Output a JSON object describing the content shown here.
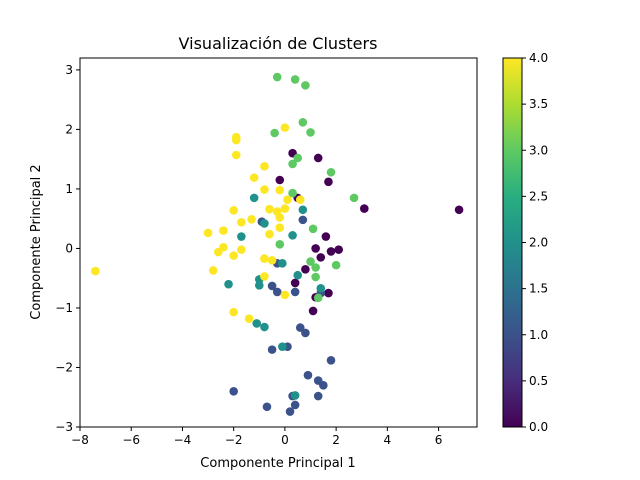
{
  "chart_data": {
    "type": "scatter",
    "title": "Visualización de Clusters",
    "xlabel": "Componente Principal 1",
    "ylabel": "Componente Principal 2",
    "xlim": [
      -8.0,
      7.5
    ],
    "ylim": [
      -3.0,
      3.2
    ],
    "xticks": [
      -8,
      -6,
      -4,
      -2,
      0,
      2,
      4,
      6
    ],
    "xtick_labels": [
      "−8",
      "−6",
      "−4",
      "−2",
      "0",
      "2",
      "4",
      "6"
    ],
    "yticks": [
      -3,
      -2,
      -1,
      0,
      1,
      2,
      3
    ],
    "ytick_labels": [
      "−3",
      "−2",
      "−1",
      "0",
      "1",
      "2",
      "3"
    ],
    "grid": false,
    "colormap": "viridis",
    "colorbar": {
      "range": [
        0.0,
        4.0
      ],
      "ticks": [
        0.0,
        0.5,
        1.0,
        1.5,
        2.0,
        2.5,
        3.0,
        3.5,
        4.0
      ],
      "tick_labels": [
        "0.0",
        "0.5",
        "1.0",
        "1.5",
        "2.0",
        "2.5",
        "3.0",
        "3.5",
        "4.0"
      ]
    },
    "points": [
      {
        "x": 6.8,
        "y": 0.65,
        "c": 0
      },
      {
        "x": 3.1,
        "y": 0.67,
        "c": 0
      },
      {
        "x": 1.3,
        "y": 1.52,
        "c": 0
      },
      {
        "x": 1.7,
        "y": 1.12,
        "c": 0
      },
      {
        "x": 0.3,
        "y": 1.6,
        "c": 0
      },
      {
        "x": -0.2,
        "y": 1.15,
        "c": 0
      },
      {
        "x": 0.5,
        "y": 0.85,
        "c": 0
      },
      {
        "x": 1.6,
        "y": 0.2,
        "c": 0
      },
      {
        "x": 1.2,
        "y": 0.0,
        "c": 0
      },
      {
        "x": 1.4,
        "y": -0.15,
        "c": 0
      },
      {
        "x": 1.8,
        "y": -0.05,
        "c": 0
      },
      {
        "x": 2.1,
        "y": -0.02,
        "c": 0
      },
      {
        "x": 0.8,
        "y": -0.35,
        "c": 0
      },
      {
        "x": 0.4,
        "y": -0.58,
        "c": 0
      },
      {
        "x": 1.7,
        "y": -0.75,
        "c": 0
      },
      {
        "x": 1.1,
        "y": -1.05,
        "c": 0
      },
      {
        "x": 1.2,
        "y": -0.82,
        "c": 0
      },
      {
        "x": -0.9,
        "y": 0.45,
        "c": 1
      },
      {
        "x": 0.7,
        "y": 0.48,
        "c": 1
      },
      {
        "x": -0.3,
        "y": -0.25,
        "c": 1
      },
      {
        "x": -0.5,
        "y": -0.63,
        "c": 1
      },
      {
        "x": -0.3,
        "y": -0.73,
        "c": 1
      },
      {
        "x": 0.4,
        "y": -0.73,
        "c": 1
      },
      {
        "x": 1.4,
        "y": -0.75,
        "c": 1
      },
      {
        "x": 0.6,
        "y": -1.33,
        "c": 1
      },
      {
        "x": 0.8,
        "y": -1.42,
        "c": 1
      },
      {
        "x": 0.1,
        "y": -1.65,
        "c": 1
      },
      {
        "x": -0.5,
        "y": -1.7,
        "c": 1
      },
      {
        "x": 1.8,
        "y": -1.88,
        "c": 1
      },
      {
        "x": 0.9,
        "y": -2.13,
        "c": 1
      },
      {
        "x": 1.3,
        "y": -2.22,
        "c": 1
      },
      {
        "x": 1.5,
        "y": -2.3,
        "c": 1
      },
      {
        "x": -2.0,
        "y": -2.4,
        "c": 1
      },
      {
        "x": 1.3,
        "y": -2.48,
        "c": 1
      },
      {
        "x": 0.3,
        "y": -2.48,
        "c": 1
      },
      {
        "x": 0.4,
        "y": -2.63,
        "c": 1
      },
      {
        "x": -0.7,
        "y": -2.66,
        "c": 1
      },
      {
        "x": 0.2,
        "y": -2.74,
        "c": 1
      },
      {
        "x": -1.2,
        "y": 0.85,
        "c": 2
      },
      {
        "x": 0.7,
        "y": 0.65,
        "c": 2
      },
      {
        "x": -0.8,
        "y": 0.42,
        "c": 2
      },
      {
        "x": 0.3,
        "y": 0.22,
        "c": 2
      },
      {
        "x": -1.7,
        "y": 0.2,
        "c": 2
      },
      {
        "x": -0.1,
        "y": -0.25,
        "c": 2
      },
      {
        "x": 0.5,
        "y": -0.45,
        "c": 2
      },
      {
        "x": -2.2,
        "y": -0.6,
        "c": 2
      },
      {
        "x": -1.0,
        "y": -0.52,
        "c": 2
      },
      {
        "x": -1.0,
        "y": -0.62,
        "c": 2
      },
      {
        "x": 1.4,
        "y": -0.67,
        "c": 2
      },
      {
        "x": -1.1,
        "y": -1.26,
        "c": 2
      },
      {
        "x": -0.8,
        "y": -1.32,
        "c": 2
      },
      {
        "x": -0.1,
        "y": -1.65,
        "c": 2
      },
      {
        "x": 0.4,
        "y": -2.47,
        "c": 2
      },
      {
        "x": -0.3,
        "y": 2.88,
        "c": 3
      },
      {
        "x": 0.4,
        "y": 2.84,
        "c": 3
      },
      {
        "x": 0.8,
        "y": 2.74,
        "c": 3
      },
      {
        "x": 0.7,
        "y": 2.12,
        "c": 3
      },
      {
        "x": 1.0,
        "y": 1.95,
        "c": 3
      },
      {
        "x": -0.4,
        "y": 1.94,
        "c": 3
      },
      {
        "x": 0.5,
        "y": 1.52,
        "c": 3
      },
      {
        "x": 0.3,
        "y": 1.42,
        "c": 3
      },
      {
        "x": 1.8,
        "y": 1.28,
        "c": 3
      },
      {
        "x": 0.3,
        "y": 0.93,
        "c": 3
      },
      {
        "x": 2.7,
        "y": 0.85,
        "c": 3
      },
      {
        "x": 1.1,
        "y": 0.33,
        "c": 3
      },
      {
        "x": -0.2,
        "y": 0.07,
        "c": 3
      },
      {
        "x": 1.0,
        "y": -0.22,
        "c": 3
      },
      {
        "x": 1.2,
        "y": -0.32,
        "c": 3
      },
      {
        "x": 2.0,
        "y": -0.28,
        "c": 3
      },
      {
        "x": 1.2,
        "y": -0.48,
        "c": 3
      },
      {
        "x": 1.3,
        "y": -0.83,
        "c": 3
      },
      {
        "x": -1.9,
        "y": 1.87,
        "c": 4
      },
      {
        "x": -1.9,
        "y": 1.82,
        "c": 4
      },
      {
        "x": -1.9,
        "y": 1.57,
        "c": 4
      },
      {
        "x": 0.0,
        "y": 2.03,
        "c": 4
      },
      {
        "x": -0.8,
        "y": 1.38,
        "c": 4
      },
      {
        "x": -1.2,
        "y": 1.19,
        "c": 4
      },
      {
        "x": -0.8,
        "y": 0.99,
        "c": 4
      },
      {
        "x": -0.2,
        "y": 0.98,
        "c": 4
      },
      {
        "x": 0.1,
        "y": 0.82,
        "c": 4
      },
      {
        "x": 0.6,
        "y": 0.82,
        "c": 4
      },
      {
        "x": -2.0,
        "y": 0.64,
        "c": 4
      },
      {
        "x": -0.6,
        "y": 0.66,
        "c": 4
      },
      {
        "x": -0.3,
        "y": 0.62,
        "c": 4
      },
      {
        "x": 0.0,
        "y": 0.67,
        "c": 4
      },
      {
        "x": -0.2,
        "y": 0.52,
        "c": 4
      },
      {
        "x": -1.3,
        "y": 0.49,
        "c": 4
      },
      {
        "x": -1.7,
        "y": 0.44,
        "c": 4
      },
      {
        "x": -0.2,
        "y": 0.35,
        "c": 4
      },
      {
        "x": -2.4,
        "y": 0.3,
        "c": 4
      },
      {
        "x": -3.0,
        "y": 0.26,
        "c": 4
      },
      {
        "x": -0.6,
        "y": 0.24,
        "c": 4
      },
      {
        "x": -1.7,
        "y": -0.02,
        "c": 4
      },
      {
        "x": -2.4,
        "y": 0.02,
        "c": 4
      },
      {
        "x": -2.6,
        "y": -0.06,
        "c": 4
      },
      {
        "x": -2.0,
        "y": -0.12,
        "c": 4
      },
      {
        "x": -0.8,
        "y": -0.17,
        "c": 4
      },
      {
        "x": -0.5,
        "y": -0.2,
        "c": 4
      },
      {
        "x": -2.8,
        "y": -0.37,
        "c": 4
      },
      {
        "x": -7.4,
        "y": -0.38,
        "c": 4
      },
      {
        "x": -0.8,
        "y": -0.47,
        "c": 4
      },
      {
        "x": 0.0,
        "y": -0.78,
        "c": 4
      },
      {
        "x": -2.0,
        "y": -1.07,
        "c": 4
      },
      {
        "x": -1.4,
        "y": -1.18,
        "c": 4
      }
    ]
  }
}
